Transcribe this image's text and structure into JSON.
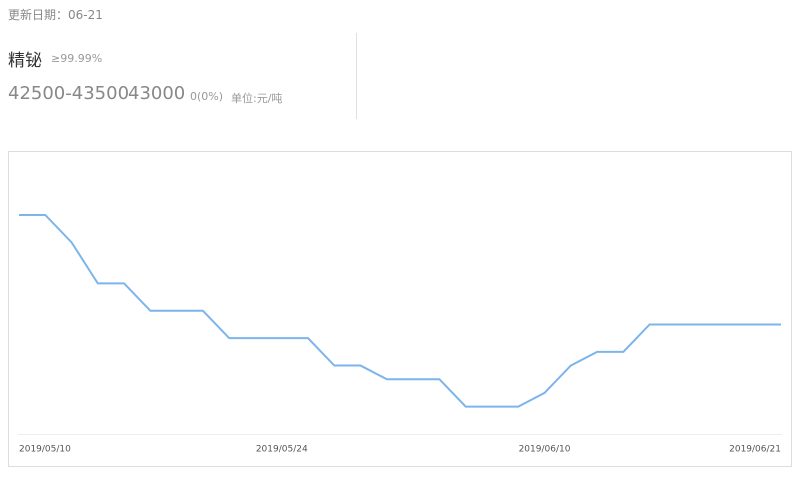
{
  "header": {
    "update_date": "更新日期：06-21",
    "name": "精铋",
    "purity": "≥99.99%",
    "price_range": "42500-43500",
    "price": "43000",
    "change": "0(0%)",
    "unit": "单位:元/吨"
  },
  "chart_data": {
    "type": "line",
    "categories": [
      "2019/05/10",
      null,
      null,
      null,
      null,
      null,
      null,
      null,
      null,
      null,
      "2019/05/24",
      null,
      null,
      null,
      null,
      null,
      null,
      null,
      null,
      null,
      "2019/06/10",
      null,
      null,
      null,
      null,
      null,
      null,
      null,
      null,
      "2019/06/21"
    ],
    "values": [
      47000,
      47000,
      46000,
      44500,
      44500,
      43500,
      43500,
      43500,
      42500,
      42500,
      42500,
      42500,
      41500,
      41500,
      41000,
      41000,
      41000,
      40000,
      40000,
      40000,
      40500,
      41500,
      42000,
      42000,
      43000,
      43000,
      43000,
      43000,
      43000,
      43000
    ],
    "color": "#7cb5ec",
    "ylim": [
      39000,
      49300
    ]
  }
}
